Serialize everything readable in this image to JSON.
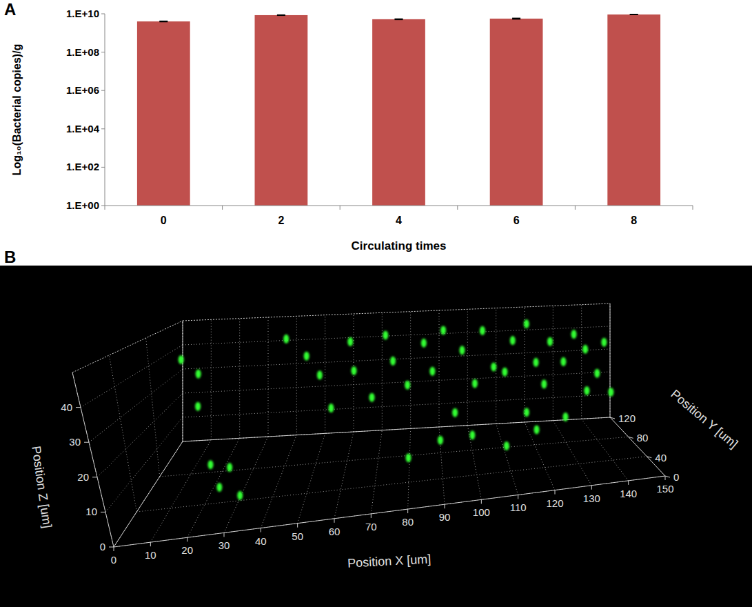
{
  "chart_data": [
    {
      "type": "bar",
      "panel": "A",
      "xlabel": "Circulating times",
      "ylabel": "Log₁₀(Bacterial copies)/g",
      "categories": [
        "0",
        "2",
        "4",
        "6",
        "8"
      ],
      "values": [
        4000000000,
        8500000000,
        5200000000,
        5600000000,
        9200000000
      ],
      "errors": [
        150000000,
        250000000,
        200000000,
        300000000,
        200000000
      ],
      "color": "#c0504d",
      "log": "y",
      "grid": false,
      "ylim": [
        1,
        10000000000
      ],
      "yticks": [
        {
          "value": 1,
          "label": "1.E+00"
        },
        {
          "value": 100,
          "label": "1.E+02"
        },
        {
          "value": 10000,
          "label": "1.E+04"
        },
        {
          "value": 1000000,
          "label": "1.E+06"
        },
        {
          "value": 100000000,
          "label": "1.E+08"
        },
        {
          "value": 10000000000,
          "label": "1.E+10"
        }
      ]
    },
    {
      "type": "scatter3d",
      "panel": "B",
      "xlabel": "Position X [um]",
      "ylabel": "Position Y [um]",
      "zlabel": "Position Z [um]",
      "xlim": [
        0,
        150
      ],
      "ylim": [
        0,
        120
      ],
      "zlim": [
        0,
        50
      ],
      "xticks": [
        0,
        10,
        20,
        30,
        40,
        50,
        60,
        70,
        80,
        90,
        100,
        110,
        120,
        130,
        140,
        150
      ],
      "yticks": [
        0,
        40,
        80,
        120
      ],
      "zticks": [
        0,
        10,
        20,
        30,
        40
      ],
      "color": "#33ff33",
      "grid": true,
      "points": {
        "x": [
          5,
          8,
          12,
          20,
          25,
          28,
          32,
          40,
          45,
          50,
          55,
          60,
          62,
          68,
          72,
          75,
          80,
          85,
          88,
          92,
          95,
          98,
          102,
          105,
          108,
          112,
          115,
          118,
          120,
          122,
          125,
          128,
          130,
          132,
          135,
          138,
          140,
          142,
          145,
          148,
          110,
          100,
          90,
          120,
          80
        ],
        "y": [
          100,
          110,
          90,
          60,
          40,
          45,
          30,
          100,
          110,
          105,
          90,
          110,
          100,
          95,
          110,
          100,
          90,
          110,
          100,
          95,
          80,
          105,
          100,
          110,
          90,
          100,
          105,
          85,
          110,
          95,
          100,
          110,
          80,
          105,
          100,
          90,
          110,
          95,
          100,
          105,
          60,
          70,
          75,
          70,
          60
        ],
        "z": [
          38,
          30,
          22,
          8,
          5,
          10,
          4,
          44,
          35,
          28,
          18,
          40,
          30,
          20,
          42,
          33,
          25,
          38,
          28,
          45,
          15,
          35,
          22,
          42,
          30,
          26,
          38,
          12,
          44,
          30,
          20,
          36,
          10,
          28,
          40,
          18,
          32,
          24,
          36,
          14,
          5,
          8,
          6,
          8,
          4
        ]
      }
    }
  ]
}
